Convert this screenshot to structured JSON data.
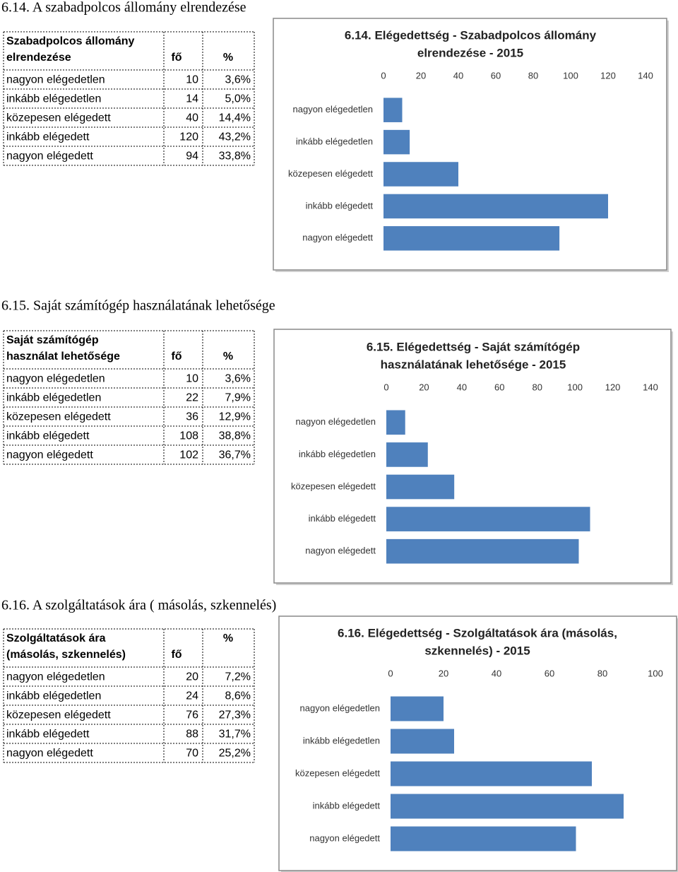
{
  "sections": [
    {
      "heading": "6.14. A szabadpolcos állomány elrendezése",
      "table": {
        "header": [
          [
            "Szabadpolcos állomány",
            "elrendezése"
          ],
          "fő",
          "%"
        ],
        "rows": [
          [
            "nagyon elégedetlen",
            "10",
            "3,6%"
          ],
          [
            "inkább elégedetlen",
            "14",
            "5,0%"
          ],
          [
            "közepesen elégedett",
            "40",
            "14,4%"
          ],
          [
            "inkább elégedett",
            "120",
            "43,2%"
          ],
          [
            "nagyon elégedett",
            "94",
            "33,8%"
          ]
        ]
      },
      "chart": {
        "type": "bar",
        "title": [
          "6.14. Elégedettség - Szabadpolcos állomány",
          "elrendezése - 2015"
        ],
        "categories": [
          "nagyon elégedetlen",
          "inkább elégedetlen",
          "közepesen elégedett",
          "inkább elégedett",
          "nagyon elégedett"
        ],
        "values": [
          10,
          14,
          40,
          120,
          94
        ],
        "color": "#4f81bd",
        "xlim": [
          0,
          140
        ],
        "xticks": [
          0,
          20,
          40,
          60,
          80,
          100,
          120,
          140
        ]
      }
    },
    {
      "heading": "6.15. Saját számítógép használatának lehetősége",
      "table": {
        "header": [
          [
            "Saját számítógép",
            "használat lehetősége"
          ],
          "fő",
          "%"
        ],
        "rows": [
          [
            "nagyon elégedetlen",
            "10",
            "3,6%"
          ],
          [
            "inkább elégedetlen",
            "22",
            "7,9%"
          ],
          [
            "közepesen elégedett",
            "36",
            "12,9%"
          ],
          [
            "inkább elégedett",
            "108",
            "38,8%"
          ],
          [
            "nagyon elégedett",
            "102",
            "36,7%"
          ]
        ]
      },
      "chart": {
        "type": "bar",
        "title": [
          "6.15. Elégedettség - Saját számítógép",
          "használatának lehetősége - 2015"
        ],
        "categories": [
          "nagyon elégedetlen",
          "inkább elégedetlen",
          "közepesen elégedett",
          "inkább elégedett",
          "nagyon elégedett"
        ],
        "values": [
          10,
          22,
          36,
          108,
          102
        ],
        "color": "#4f81bd",
        "xlim": [
          0,
          140
        ],
        "xticks": [
          0,
          20,
          40,
          60,
          80,
          100,
          120,
          140
        ]
      }
    },
    {
      "heading": "6.16. A szolgáltatások ára ( másolás, szkennelés)",
      "table": {
        "header": [
          [
            "Szolgáltatások ára",
            "(másolás, szkennelés)"
          ],
          "fő",
          "%"
        ],
        "rows": [
          [
            "nagyon elégedetlen",
            "20",
            "7,2%"
          ],
          [
            "inkább elégedetlen",
            "24",
            "8,6%"
          ],
          [
            "közepesen elégedett",
            "76",
            "27,3%"
          ],
          [
            "inkább elégedett",
            "88",
            "31,7%"
          ],
          [
            "nagyon elégedett",
            "70",
            "25,2%"
          ]
        ]
      },
      "chart": {
        "type": "bar",
        "title": [
          "6.16. Elégedettség - Szolgáltatások ára (másolás,",
          "szkennelés) - 2015"
        ],
        "categories": [
          "nagyon elégedetlen",
          "inkább elégedetlen",
          "közepesen elégedett",
          "inkább elégedett",
          "nagyon elégedett"
        ],
        "values": [
          20,
          24,
          76,
          88,
          70
        ],
        "color": "#4f81bd",
        "xlim": [
          0,
          100
        ],
        "xticks": [
          0,
          20,
          40,
          60,
          80,
          100
        ]
      }
    }
  ]
}
